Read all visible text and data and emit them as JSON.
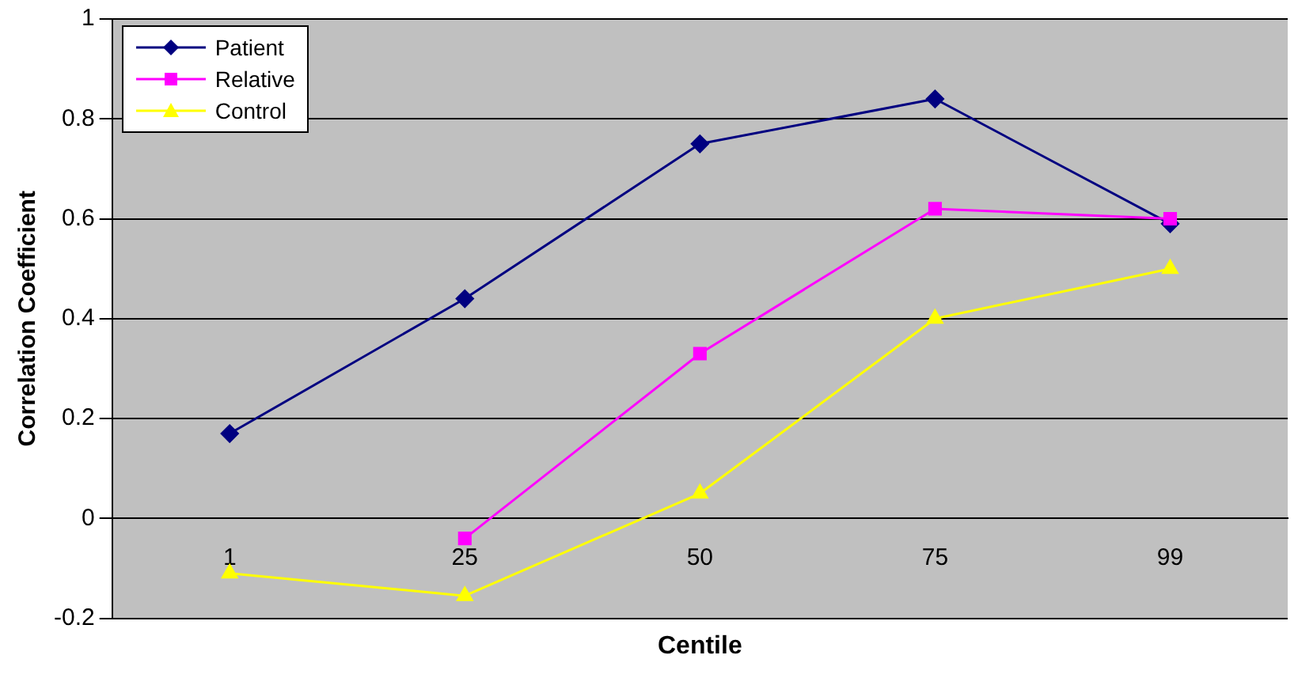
{
  "chart_data": {
    "type": "line",
    "xlabel": "Centile",
    "ylabel": "Correlation Coefficient",
    "categories": [
      "1",
      "25",
      "50",
      "75",
      "99"
    ],
    "series": [
      {
        "name": "Patient",
        "color": "#000080",
        "marker": "diamond",
        "values": [
          0.17,
          0.44,
          0.75,
          0.84,
          0.59
        ]
      },
      {
        "name": "Relative",
        "color": "#ff00ff",
        "marker": "square",
        "values": [
          null,
          -0.04,
          0.33,
          0.62,
          0.6
        ]
      },
      {
        "name": "Control",
        "color": "#ffff00",
        "marker": "triangle",
        "values": [
          -0.11,
          -0.155,
          0.05,
          0.4,
          0.5
        ]
      }
    ],
    "ylim": [
      -0.2,
      1
    ],
    "yticks": [
      -0.2,
      0,
      0.2,
      0.4,
      0.6,
      0.8,
      1
    ],
    "grid": "y",
    "legend": "top left",
    "line_style": "solid"
  }
}
